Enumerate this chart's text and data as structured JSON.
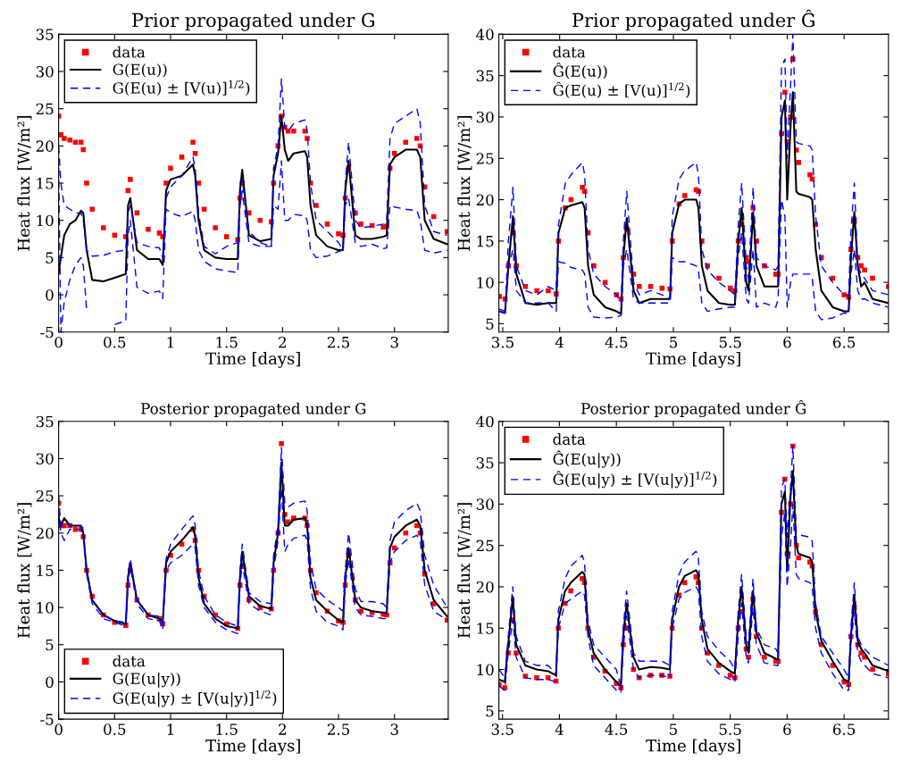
{
  "chart_data": [
    {
      "type": "line",
      "title": "Prior propagated under G",
      "xlabel": "Time [days]",
      "ylabel": "Heat flux [W/m²]",
      "xlim": [
        0,
        3.48
      ],
      "xticks": [
        0,
        0.5,
        1,
        1.5,
        2,
        2.5,
        3
      ],
      "ylim": [
        -5,
        35
      ],
      "yticks": [
        {
          "value": -5,
          "label": "-5"
        },
        0,
        5,
        10,
        15,
        20,
        25,
        30,
        35
      ],
      "legend": "top left",
      "x": [
        0,
        0.02,
        0.05,
        0.1,
        0.15,
        0.2,
        0.22,
        0.25,
        0.3,
        0.4,
        0.5,
        0.6,
        0.62,
        0.64,
        0.7,
        0.8,
        0.9,
        0.93,
        0.96,
        1.0,
        1.1,
        1.2,
        1.22,
        1.25,
        1.3,
        1.4,
        1.5,
        1.6,
        1.62,
        1.64,
        1.7,
        1.8,
        1.9,
        1.92,
        1.96,
        1.99,
        2.02,
        2.05,
        2.1,
        2.2,
        2.22,
        2.25,
        2.3,
        2.4,
        2.5,
        2.54,
        2.56,
        2.59,
        2.65,
        2.7,
        2.8,
        2.9,
        2.93,
        2.96,
        3.0,
        3.1,
        3.2,
        3.23,
        3.27,
        3.35,
        3.47
      ],
      "series": [
        {
          "name": "data",
          "type": "scatter",
          "marker": "square",
          "color": "#ff0000",
          "values": [
            24,
            21.5,
            21,
            20.8,
            20.5,
            20.5,
            19.5,
            15,
            11.5,
            9,
            8,
            7.8,
            14,
            15.5,
            11,
            8.8,
            8.3,
            7.8,
            15,
            17,
            18.5,
            20.5,
            19,
            15,
            11.5,
            9,
            7.8,
            7.4,
            13,
            15,
            11,
            10,
            9.8,
            15,
            20,
            24,
            22.5,
            22,
            22,
            22,
            21,
            15,
            12,
            9.5,
            8.2,
            8,
            13,
            17,
            11,
            9.5,
            9.3,
            9.1,
            9.2,
            17,
            19,
            20.5,
            21,
            20,
            14.5,
            10.5,
            8.5
          ]
        },
        {
          "name": "G(E(u))",
          "line_style": "solid",
          "color": "#000000",
          "values": [
            3,
            5,
            8,
            9.5,
            10,
            11.3,
            11,
            6,
            2,
            1.8,
            2.3,
            2.8,
            12,
            13,
            6,
            4.8,
            4.8,
            4,
            14,
            15.5,
            16,
            17.5,
            16,
            10,
            6,
            5,
            4.8,
            4.8,
            14,
            16.8,
            8,
            7.2,
            7.5,
            16,
            19,
            24,
            19.5,
            18,
            19,
            19.3,
            18.5,
            12,
            8,
            6.5,
            6,
            6,
            14,
            18,
            8,
            7.5,
            7.5,
            7.8,
            8,
            17.5,
            18.5,
            19.5,
            19.5,
            18.5,
            10,
            7.5,
            6.8
          ]
        },
        {
          "name": "G(E(u) ± [V(u)]$^{1/2}$)",
          "line_style": "dashed",
          "color": "#0000ff",
          "values": [
            20,
            15,
            12,
            11.5,
            11,
            11,
            10,
            6,
            5.2,
            5.3,
            5.8,
            6,
            11,
            12,
            7,
            6.5,
            6.3,
            5,
            13,
            14.5,
            16,
            18.5,
            17,
            11,
            6.5,
            5.5,
            6.5,
            7,
            13,
            15.5,
            8.5,
            7,
            6.5,
            17,
            20,
            29,
            22.5,
            22,
            23,
            23.5,
            22,
            15,
            10,
            8.5,
            7,
            6,
            15,
            20.5,
            10,
            9,
            9.2,
            9.5,
            10,
            21,
            23,
            24,
            25,
            23,
            12,
            8.5,
            8
          ]
        },
        {
          "line_style": "dashed",
          "color": "#0000ff",
          "values": [
            17,
            -5,
            -1,
            2,
            4,
            5,
            4,
            -2,
            null,
            null,
            -4,
            -3.5,
            8,
            10,
            1,
            0.2,
            0.5,
            -0.5,
            11.5,
            11,
            10.5,
            11.2,
            10,
            6,
            4.5,
            3.5,
            3.2,
            3,
            12,
            14,
            7,
            6.5,
            6.5,
            12,
            11.5,
            18,
            10,
            10,
            10.8,
            10.6,
            10,
            6,
            5,
            5.2,
            5.8,
            6,
            12,
            13,
            7,
            6.5,
            6.8,
            6.2,
            6.3,
            12,
            11.8,
            11.5,
            11.3,
            10,
            6,
            5.6,
            6
          ]
        }
      ]
    },
    {
      "type": "line",
      "title": "Prior propagated under Ĝ",
      "xlabel": "Time [days]",
      "ylabel": "Heat flux [W/m²]",
      "xlim": [
        3.466,
        6.89
      ],
      "xticks": [
        3.5,
        4,
        4.5,
        5,
        5.5,
        6,
        6.5
      ],
      "ylim": [
        4,
        40
      ],
      "yticks": [
        5,
        10,
        15,
        20,
        25,
        30,
        35,
        40
      ],
      "legend": "top left",
      "x": [
        3.47,
        3.52,
        3.55,
        3.59,
        3.62,
        3.7,
        3.8,
        3.9,
        3.97,
        3.99,
        4.05,
        4.1,
        4.2,
        4.22,
        4.25,
        4.3,
        4.4,
        4.5,
        4.54,
        4.56,
        4.59,
        4.65,
        4.7,
        4.8,
        4.9,
        4.97,
        4.99,
        5.05,
        5.1,
        5.2,
        5.22,
        5.25,
        5.3,
        5.4,
        5.5,
        5.54,
        5.57,
        5.6,
        5.64,
        5.66,
        5.7,
        5.73,
        5.8,
        5.9,
        5.92,
        5.95,
        5.98,
        6.0,
        6.03,
        6.05,
        6.08,
        6.1,
        6.2,
        6.22,
        6.25,
        6.3,
        6.4,
        6.5,
        6.54,
        6.56,
        6.59,
        6.62,
        6.65,
        6.68,
        6.75,
        6.89
      ],
      "series": [
        {
          "name": "data",
          "type": "scatter",
          "marker": "square",
          "color": "#ff0000",
          "values": [
            8.3,
            8,
            12,
            16,
            12,
            9.5,
            9,
            9,
            8.6,
            15,
            19,
            20,
            21.5,
            21,
            16,
            12,
            10,
            8.5,
            8,
            13,
            16.5,
            11,
            9.5,
            9.5,
            9.3,
            9.2,
            15,
            19.5,
            20.5,
            21.2,
            21,
            15,
            12,
            10.5,
            9.3,
            9,
            15,
            17,
            13,
            12.5,
            19,
            15,
            12,
            11,
            11,
            28,
            33,
            27,
            30,
            37,
            26,
            24.5,
            23,
            22.5,
            17,
            13,
            10.5,
            8.5,
            8.2,
            14,
            17.5,
            13,
            12,
            11.5,
            10.5,
            9.5
          ]
        },
        {
          "name": "Ĝ(E(u))",
          "line_style": "solid",
          "color": "#000000",
          "values": [
            6.5,
            6.3,
            12,
            18,
            11,
            7.5,
            7.3,
            7.5,
            7.5,
            16,
            19,
            19.3,
            19.7,
            19,
            12,
            8.5,
            7,
            6.5,
            6.2,
            13,
            17.8,
            9,
            7.5,
            8,
            8,
            8,
            16,
            19.5,
            20,
            20,
            19,
            12,
            9,
            7.5,
            7.3,
            7.3,
            15,
            19,
            10,
            9,
            18.5,
            12,
            9.5,
            9.5,
            9.5,
            30,
            32,
            20,
            29,
            33,
            21,
            20.7,
            20.3,
            20,
            14,
            9,
            7,
            6.5,
            6.5,
            13,
            18.5,
            12,
            9.5,
            10,
            8,
            7.5
          ]
        },
        {
          "name": "Ĝ(E(u) ± [V(u)]$^{1/2}$)",
          "line_style": "dashed",
          "color": "#0000ff",
          "values": [
            6.8,
            6.5,
            15,
            21.5,
            12,
            9,
            8.5,
            9.5,
            9,
            17,
            22,
            23,
            24.5,
            23,
            14,
            11,
            9.5,
            8.5,
            7.5,
            15,
            21,
            10,
            8.5,
            9,
            8.5,
            8,
            18,
            22.5,
            23.5,
            24.5,
            23,
            14,
            11.5,
            10,
            9,
            8.5,
            17,
            22,
            12,
            10.5,
            21.5,
            13,
            12,
            11.5,
            12,
            36,
            37,
            25,
            34,
            40,
            27,
            26.8,
            26.5,
            26,
            18,
            12,
            10,
            8.5,
            8.5,
            16,
            22,
            12,
            11,
            10.5,
            9,
            8.5
          ]
        },
        {
          "line_style": "dashed",
          "color": "#0000ff",
          "values": [
            6.5,
            6.3,
            12,
            14,
            9,
            7.5,
            7.5,
            7.5,
            6.5,
            12.5,
            12.3,
            11.8,
            11.5,
            11,
            7,
            5.8,
            5.7,
            5.8,
            6,
            12,
            14,
            8,
            7.5,
            7.5,
            7.5,
            7.5,
            13,
            12.5,
            12.5,
            12,
            11.5,
            7.5,
            6.5,
            6.8,
            7,
            7,
            13,
            16,
            8,
            7.5,
            14,
            7,
            7.5,
            7,
            8,
            20,
            18,
            7,
            10,
            11,
            11,
            11,
            11,
            10.5,
            6.5,
            5.5,
            5.7,
            6.3,
            6.3,
            11,
            14,
            9,
            8,
            8,
            7.5,
            7
          ]
        }
      ]
    },
    {
      "type": "line",
      "title": "Posterior propagated under G",
      "xlabel": "Time [days]",
      "ylabel": "Heat flux [W/m²]",
      "xlim": [
        0,
        3.48
      ],
      "xticks": [
        0,
        0.5,
        1,
        1.5,
        2,
        2.5,
        3
      ],
      "ylim": [
        -5,
        35
      ],
      "yticks": [
        {
          "value": -5,
          "label": "-5"
        },
        0,
        5,
        10,
        15,
        20,
        25,
        30,
        35
      ],
      "legend": "bottom left",
      "x": [
        0,
        0.02,
        0.05,
        0.1,
        0.15,
        0.2,
        0.22,
        0.25,
        0.3,
        0.4,
        0.5,
        0.6,
        0.62,
        0.64,
        0.7,
        0.8,
        0.9,
        0.93,
        0.96,
        1.0,
        1.1,
        1.2,
        1.22,
        1.25,
        1.3,
        1.4,
        1.5,
        1.6,
        1.62,
        1.64,
        1.7,
        1.8,
        1.9,
        1.92,
        1.96,
        1.99,
        2.02,
        2.05,
        2.1,
        2.2,
        2.22,
        2.25,
        2.3,
        2.4,
        2.5,
        2.54,
        2.56,
        2.59,
        2.65,
        2.7,
        2.8,
        2.9,
        2.93,
        2.96,
        3.0,
        3.1,
        3.2,
        3.23,
        3.27,
        3.35,
        3.47
      ],
      "series": [
        {
          "name": "data",
          "type": "scatter",
          "marker": "square",
          "color": "#ff0000",
          "values": [
            24,
            21,
            21,
            21,
            20.5,
            20.5,
            19.5,
            15,
            11.5,
            9,
            8,
            7.6,
            13,
            15,
            11,
            9,
            8.5,
            7.8,
            15,
            17,
            18.5,
            20.5,
            19,
            15,
            11.5,
            9,
            7.8,
            7.2,
            13,
            15.5,
            11,
            10,
            9.8,
            15,
            20,
            32,
            22.5,
            21.5,
            22,
            22,
            21,
            15,
            12,
            9.5,
            8.2,
            8,
            13,
            17,
            11,
            9.5,
            9.3,
            9.1,
            9,
            16,
            18,
            20,
            21,
            20,
            14.5,
            10.5,
            8.3
          ]
        },
        {
          "name": "G(E(u|y))",
          "line_style": "solid",
          "color": "#000000",
          "values": [
            22,
            21,
            22,
            21,
            21,
            21,
            20,
            15,
            11,
            9,
            8.2,
            7.8,
            14,
            16,
            11,
            9,
            8.5,
            8,
            16,
            17.5,
            19,
            20.8,
            19.5,
            14,
            10.5,
            8.5,
            7.5,
            7.2,
            14,
            17.5,
            11.5,
            10.2,
            9.8,
            16,
            20,
            29.5,
            21,
            21,
            21.8,
            22,
            21,
            14,
            11,
            9.5,
            8.3,
            8,
            14,
            18,
            11,
            10,
            9.5,
            9.3,
            9.2,
            18,
            19.5,
            21,
            21.8,
            21,
            15,
            11,
            8.8
          ]
        },
        {
          "name": "G(E(u|y) ± [V(u|y)]$^{1/2}$)",
          "line_style": "dashed",
          "color": "#0000ff",
          "values": [
            25,
            21,
            21.5,
            21,
            21,
            21,
            20,
            15,
            11,
            9,
            8.2,
            8,
            14.5,
            16.5,
            11,
            9,
            8.8,
            8,
            16.5,
            18.5,
            20.5,
            22.3,
            21,
            15,
            11.5,
            9,
            8,
            7.5,
            15,
            18.5,
            12,
            10.8,
            10.5,
            17,
            21,
            31.5,
            24,
            23.5,
            24,
            24.3,
            23,
            16,
            12.5,
            11,
            10,
            9.5,
            15,
            20,
            12.5,
            10.8,
            10.8,
            10.5,
            10,
            19,
            21.5,
            23,
            24,
            23,
            17,
            13,
            10
          ]
        },
        {
          "line_style": "dashed",
          "color": "#0000ff",
          "values": [
            23,
            20,
            19,
            20.5,
            20.5,
            20.5,
            19.5,
            14.5,
            10.5,
            8.5,
            8,
            7.5,
            13,
            15.5,
            10.5,
            8.5,
            8.2,
            7,
            15,
            16,
            17,
            18.5,
            18,
            13,
            10,
            8,
            7,
            6.5,
            13,
            16,
            10.5,
            9.5,
            9,
            15,
            19,
            26,
            17.5,
            18.5,
            19.3,
            19.7,
            19,
            12.5,
            9.5,
            8,
            7.5,
            7,
            13,
            16.5,
            10,
            9,
            8.8,
            8.5,
            8.5,
            16,
            17.5,
            19,
            19.7,
            19,
            13,
            9.5,
            8.3
          ]
        }
      ]
    },
    {
      "type": "line",
      "title": "Posterior propagated under Ĝ",
      "xlabel": "Time [days]",
      "ylabel": "Heat flux [W/m²]",
      "xlim": [
        3.468,
        6.89
      ],
      "xticks": [
        3.5,
        4,
        4.5,
        5,
        5.5,
        6,
        6.5
      ],
      "ylim": [
        4,
        40
      ],
      "yticks": [
        5,
        10,
        15,
        20,
        25,
        30,
        35,
        40
      ],
      "legend": "top left",
      "x": [
        3.47,
        3.52,
        3.55,
        3.59,
        3.62,
        3.7,
        3.8,
        3.9,
        3.97,
        3.99,
        4.05,
        4.1,
        4.2,
        4.22,
        4.25,
        4.3,
        4.4,
        4.5,
        4.54,
        4.56,
        4.59,
        4.65,
        4.7,
        4.8,
        4.9,
        4.97,
        4.99,
        5.05,
        5.1,
        5.2,
        5.22,
        5.25,
        5.3,
        5.4,
        5.5,
        5.54,
        5.57,
        5.6,
        5.64,
        5.66,
        5.7,
        5.73,
        5.8,
        5.9,
        5.92,
        5.95,
        5.98,
        6.0,
        6.03,
        6.05,
        6.08,
        6.1,
        6.2,
        6.22,
        6.25,
        6.3,
        6.4,
        6.5,
        6.54,
        6.56,
        6.59,
        6.62,
        6.65,
        6.68,
        6.75,
        6.89
      ],
      "series": [
        {
          "name": "data",
          "type": "scatter",
          "marker": "square",
          "color": "#ff0000",
          "values": [
            8.2,
            7.8,
            12,
            16,
            12,
            9.2,
            9,
            9,
            8.6,
            15,
            18,
            19.5,
            21,
            20.5,
            15,
            11.5,
            9.8,
            8.3,
            7.8,
            13,
            15,
            10,
            9,
            9.3,
            9.3,
            9.2,
            15,
            19,
            20.5,
            21.2,
            20.5,
            15,
            12,
            10.5,
            9.3,
            9,
            15,
            17,
            12.5,
            11.5,
            18.5,
            14,
            11.5,
            11,
            11,
            29,
            33,
            24,
            30,
            37,
            25,
            23.5,
            23,
            22.5,
            17,
            13,
            10.5,
            8.5,
            8.2,
            14,
            17.5,
            13,
            12,
            11.5,
            10,
            9.5
          ]
        },
        {
          "name": "Ĝ(E(u|y))",
          "line_style": "solid",
          "color": "#000000",
          "values": [
            8.8,
            8.5,
            13,
            18.8,
            13,
            10.5,
            10,
            9.8,
            9.3,
            16,
            19.5,
            20.5,
            21.8,
            21.5,
            15,
            12,
            10,
            8.5,
            8,
            14,
            18,
            11.5,
            10,
            10.3,
            10.2,
            10,
            16,
            20,
            21.3,
            22,
            21.5,
            16,
            12.5,
            10.8,
            9.8,
            9.5,
            16,
            20,
            13,
            12,
            19.5,
            14.5,
            12,
            11.3,
            11.2,
            30,
            31.5,
            22,
            31,
            34,
            25,
            24,
            23.5,
            23,
            17,
            13.5,
            11,
            8.8,
            8.5,
            14,
            19,
            13.5,
            12.5,
            12,
            10.5,
            9.8
          ]
        },
        {
          "name": "Ĝ(E(u|y) ± [V(u|y)]$^{1/2}$)",
          "line_style": "dashed",
          "color": "#0000ff",
          "values": [
            10,
            9,
            14,
            20,
            14,
            11,
            10.5,
            10.5,
            9.5,
            17,
            21,
            22.5,
            23.8,
            23,
            16,
            13,
            11.5,
            10,
            8,
            15,
            19.5,
            12,
            11,
            11,
            11,
            10.5,
            17,
            21.5,
            23,
            24.3,
            23.5,
            17,
            14,
            12.3,
            11,
            10,
            17,
            21.5,
            14,
            13,
            21,
            15,
            13,
            12.5,
            12,
            32,
            33,
            26,
            32,
            37,
            26.5,
            26.3,
            26,
            25.5,
            18,
            14,
            12,
            10,
            9,
            15,
            20.5,
            14,
            13,
            12.5,
            11.5,
            10.5
          ]
        },
        {
          "line_style": "dashed",
          "color": "#0000ff",
          "values": [
            8,
            7.5,
            12,
            16,
            11.5,
            9,
            8.8,
            8.8,
            8.5,
            15,
            18,
            18.5,
            19.5,
            19,
            14,
            10.5,
            9,
            7.5,
            7.2,
            12.5,
            16.5,
            10,
            9,
            9.3,
            9.3,
            9,
            15,
            18.5,
            19.3,
            20,
            19.5,
            14,
            11,
            9.5,
            8.8,
            8.5,
            14,
            18,
            11.5,
            10.8,
            17.5,
            13,
            10.8,
            10.5,
            10.5,
            26,
            29,
            20,
            25,
            30,
            21.5,
            21,
            20.5,
            20,
            15,
            12,
            9.5,
            7.5,
            7.5,
            13,
            17,
            12,
            11,
            10.5,
            9.5,
            9
          ]
        }
      ]
    }
  ]
}
